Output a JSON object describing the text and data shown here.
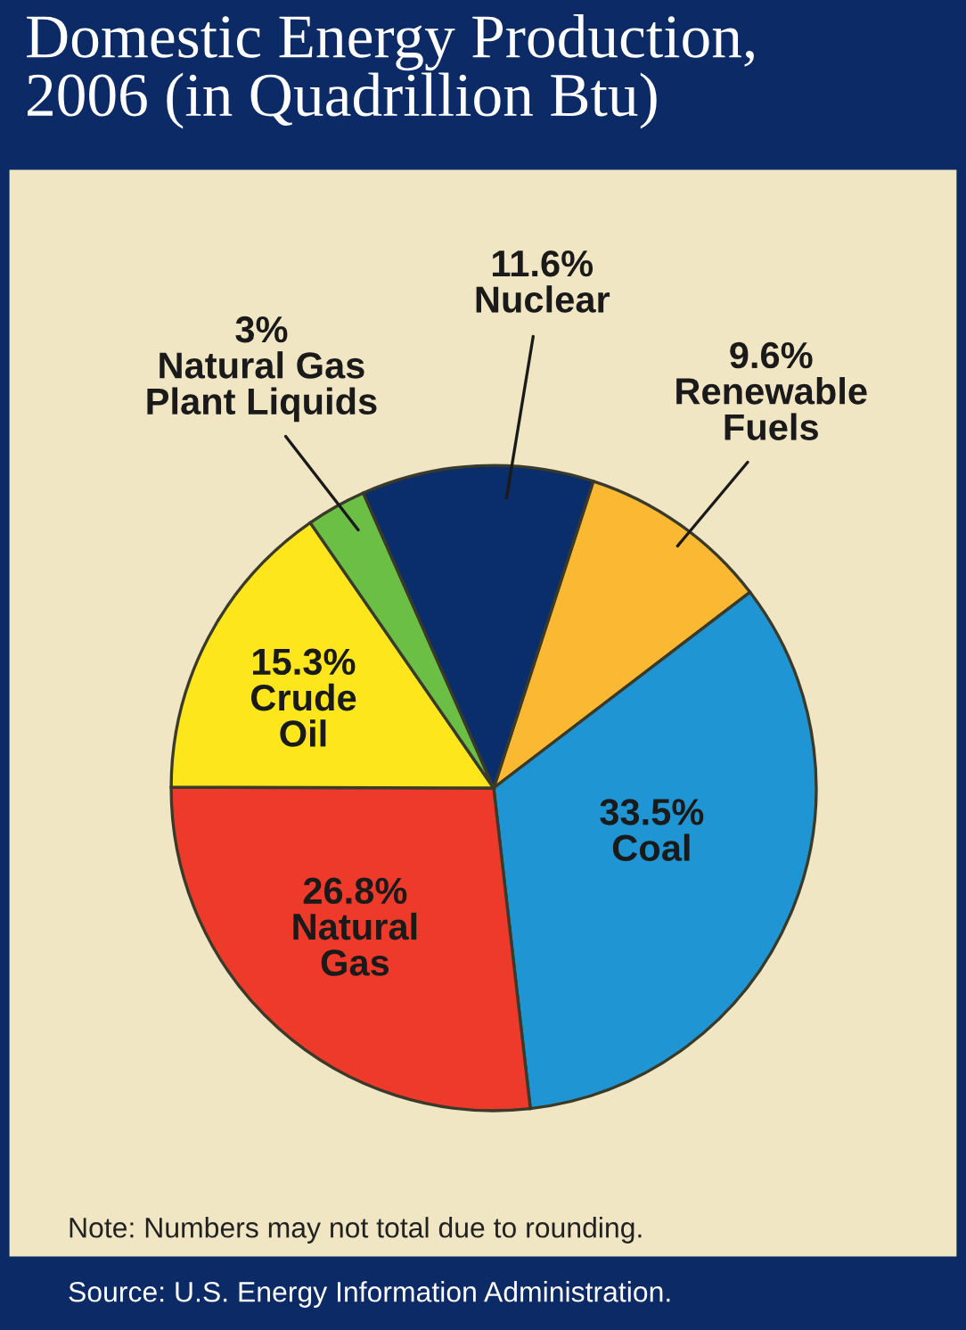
{
  "chart_data": {
    "type": "pie",
    "title": "Domestic Energy Production,\n2006 (in Quadrillion Btu)",
    "categories": [
      "Renewable\nFuels",
      "Coal",
      "Natural\nGas",
      "Crude\nOil",
      "Natural Gas\nPlant Liquids",
      "Nuclear"
    ],
    "values": [
      9.6,
      33.5,
      26.8,
      15.3,
      3,
      11.6
    ],
    "colors": [
      "#fbb832",
      "#1f96d3",
      "#ee3a2b",
      "#fde61b",
      "#6cbf45",
      "#0a2d6b"
    ],
    "value_labels": [
      "9.6%",
      "33.5%",
      "26.8%",
      "15.3%",
      "3%",
      "11.6%"
    ],
    "annotations": [
      "Note: Numbers may not total due to rounding.",
      "Source: U.S. Energy Information Administration."
    ]
  }
}
